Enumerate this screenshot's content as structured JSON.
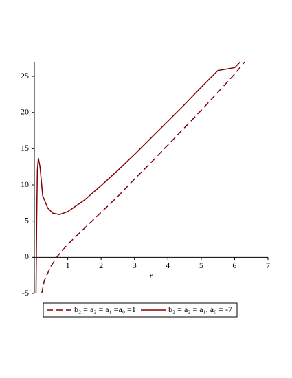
{
  "chart_data": {
    "type": "line",
    "xlabel": "r",
    "xlim": [
      0,
      7
    ],
    "ylim": [
      -5,
      27
    ],
    "xticks": [
      1,
      2,
      3,
      4,
      5,
      6,
      7
    ],
    "yticks": [
      -5,
      0,
      5,
      10,
      15,
      20,
      25
    ],
    "legend": "bottom",
    "series": [
      {
        "name": "b₂ = a₂ = a₁ =a₀ =1",
        "color": "#800000",
        "linestyle": "dashed",
        "x": [
          0.22,
          0.3,
          0.5,
          0.7,
          1,
          1.5,
          2,
          2.5,
          3,
          3.5,
          4,
          4.5,
          5,
          5.5,
          6,
          6.3
        ],
        "values": [
          -5,
          -3.2,
          -1.2,
          0.2,
          1.8,
          4,
          6.2,
          8.4,
          10.8,
          13.1,
          15.5,
          17.9,
          20.3,
          22.8,
          25.3,
          27
        ]
      },
      {
        "name": "b₂ = a₂ = a₁, a₀ = -7",
        "color": "#800000",
        "linestyle": "solid",
        "x": [
          0.05,
          0.07,
          0.09,
          0.12,
          0.17,
          0.25,
          0.4,
          0.55,
          0.75,
          1,
          1.5,
          2,
          2.5,
          3,
          3.5,
          4,
          4.5,
          5,
          5.5,
          6,
          6.17
        ],
        "values": [
          -5,
          5,
          12,
          13.7,
          12.5,
          8.5,
          6.8,
          6.1,
          5.9,
          6.3,
          7.9,
          9.9,
          12,
          14.2,
          16.5,
          18.8,
          21.1,
          23.5,
          25.8,
          26.2,
          27
        ]
      }
    ]
  }
}
